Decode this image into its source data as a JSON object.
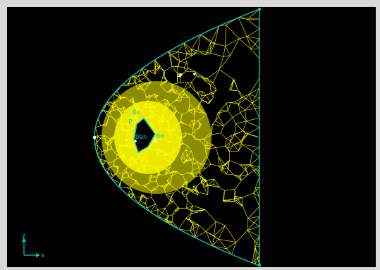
{
  "viewport": {
    "background": "#000000",
    "mesh_color": "#ffff00",
    "boundary_color": "#00c8c8"
  },
  "axis_triad": {
    "x_label": "x",
    "y_label": "y",
    "color": "#00c8c8"
  },
  "hole_labels": {
    "top": "Ou",
    "left": "p",
    "right": "-0n",
    "inner": "Dan"
  },
  "icons": [
    "axis-triad-icon"
  ]
}
